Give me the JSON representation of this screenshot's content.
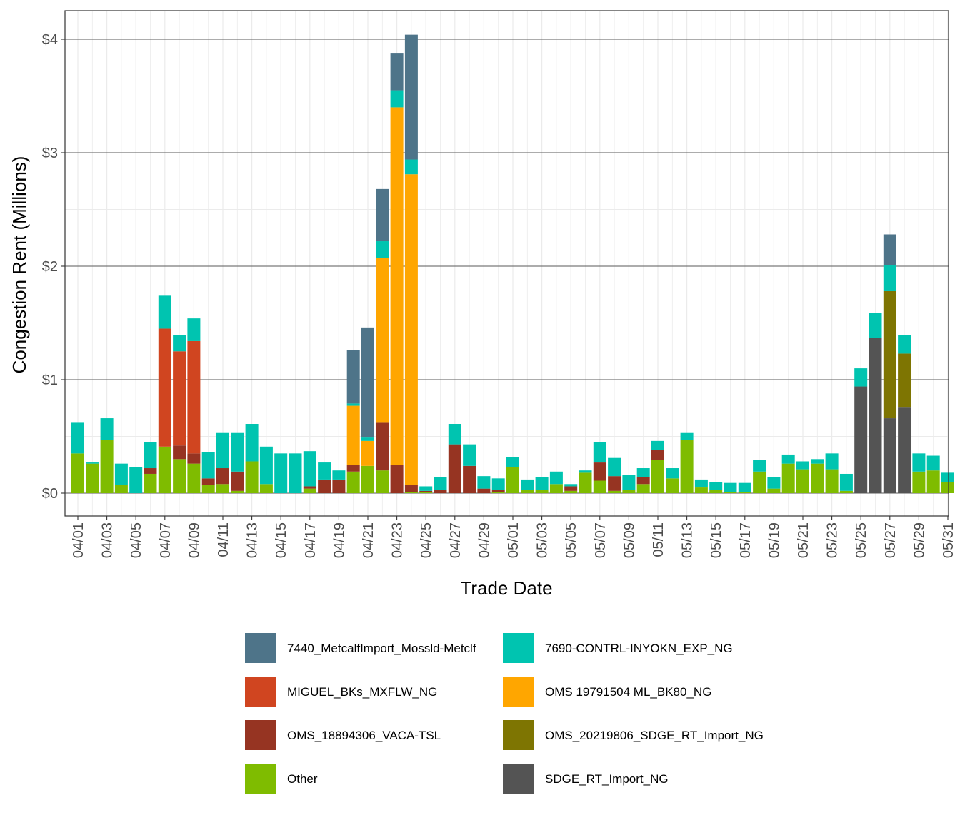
{
  "chart_data": {
    "type": "bar",
    "stacked": true,
    "xlabel": "Trade Date",
    "ylabel": "Congestion Rent (Millions)",
    "ylim": [
      -0.2,
      4.23
    ],
    "yticks": [
      {
        "value": 0,
        "label": "$0"
      },
      {
        "value": 1,
        "label": "$1"
      },
      {
        "value": 2,
        "label": "$2"
      },
      {
        "value": 3,
        "label": "$3"
      },
      {
        "value": 4,
        "label": "$4"
      }
    ],
    "grid": true,
    "legend_position": "bottom",
    "categories": [
      "04/01",
      "04/02",
      "04/03",
      "04/04",
      "04/05",
      "04/06",
      "04/07",
      "04/08",
      "04/09",
      "04/10",
      "04/11",
      "04/12",
      "04/13",
      "04/14",
      "04/15",
      "04/16",
      "04/17",
      "04/18",
      "04/19",
      "04/20",
      "04/21",
      "04/22",
      "04/23",
      "04/24",
      "04/25",
      "04/26",
      "04/27",
      "04/28",
      "04/29",
      "04/30",
      "05/01",
      "05/02",
      "05/03",
      "05/04",
      "05/05",
      "05/06",
      "05/07",
      "05/08",
      "05/09",
      "05/10",
      "05/11",
      "05/12",
      "05/13",
      "05/14",
      "05/15",
      "05/16",
      "05/17",
      "05/18",
      "05/19",
      "05/20",
      "05/21",
      "05/22",
      "05/23",
      "05/24",
      "05/25",
      "05/26",
      "05/27",
      "05/28",
      "05/29",
      "05/30",
      "05/31"
    ],
    "xtick_labels": [
      "04/01",
      "04/03",
      "04/05",
      "04/07",
      "04/09",
      "04/11",
      "04/13",
      "04/15",
      "04/17",
      "04/19",
      "04/21",
      "04/23",
      "04/25",
      "04/27",
      "04/29",
      "05/01",
      "05/03",
      "05/05",
      "05/07",
      "05/09",
      "05/11",
      "05/13",
      "05/15",
      "05/17",
      "05/19",
      "05/21",
      "05/23",
      "05/25",
      "05/27",
      "05/29",
      "05/31"
    ],
    "series": [
      {
        "name": "Other",
        "color": "#7fbc00",
        "values": [
          0.35,
          0.26,
          0.47,
          0.07,
          0.0,
          0.17,
          0.41,
          0.3,
          0.26,
          0.07,
          0.08,
          0.02,
          0.28,
          0.08,
          0.0,
          0.0,
          0.04,
          0.0,
          0.0,
          0.19,
          0.24,
          0.2,
          0.0,
          0.01,
          0.01,
          0.0,
          0.0,
          0.0,
          0.0,
          0.01,
          0.23,
          0.03,
          0.03,
          0.08,
          0.02,
          0.18,
          0.11,
          0.02,
          0.03,
          0.08,
          0.29,
          0.13,
          0.47,
          0.05,
          0.03,
          0.01,
          0.01,
          0.19,
          0.04,
          0.26,
          0.21,
          0.26,
          0.21,
          0.02,
          0.0,
          0.0,
          0.0,
          0.0,
          0.19,
          0.2,
          0.1
        ]
      },
      {
        "name": "SDGE_RT_Import_NG",
        "color": "#545454",
        "values": [
          0,
          0,
          0,
          0,
          0,
          0,
          0,
          0,
          0,
          0,
          0,
          0,
          0,
          0,
          0,
          0,
          0,
          0,
          0,
          0,
          0,
          0,
          0,
          0,
          0,
          0,
          0,
          0,
          0,
          0,
          0,
          0,
          0,
          0,
          0,
          0,
          0,
          0,
          0,
          0,
          0,
          0,
          0,
          0,
          0,
          0,
          0,
          0,
          0,
          0,
          0,
          0,
          0,
          0,
          0.94,
          1.37,
          0.66,
          0.76,
          0,
          0,
          0
        ]
      },
      {
        "name": "OMS_18894306_VACA-TSL",
        "color": "#963422",
        "values": [
          0,
          0,
          0,
          0,
          0,
          0.05,
          0,
          0.12,
          0.09,
          0.06,
          0.14,
          0.17,
          0,
          0,
          0,
          0,
          0.02,
          0.12,
          0.12,
          0.06,
          0,
          0.42,
          0.25,
          0.06,
          0.01,
          0.03,
          0.43,
          0.24,
          0.04,
          0.02,
          0,
          0,
          0,
          0,
          0.04,
          0,
          0.16,
          0.13,
          0,
          0.06,
          0.09,
          0,
          0,
          0,
          0,
          0,
          0,
          0,
          0,
          0,
          0,
          0,
          0,
          0,
          0,
          0,
          0,
          0,
          0,
          0,
          0
        ]
      },
      {
        "name": "MIGUEL_BKs_MXFLW_NG",
        "color": "#d04520",
        "values": [
          0,
          0,
          0,
          0,
          0,
          0,
          1.04,
          0.83,
          0.99,
          0,
          0,
          0,
          0,
          0,
          0,
          0,
          0,
          0,
          0,
          0,
          0,
          0,
          0,
          0,
          0,
          0,
          0,
          0,
          0,
          0,
          0,
          0,
          0,
          0,
          0,
          0,
          0,
          0,
          0,
          0,
          0,
          0,
          0,
          0,
          0,
          0,
          0,
          0,
          0,
          0,
          0,
          0,
          0,
          0,
          0,
          0,
          0,
          0,
          0,
          0,
          0
        ]
      },
      {
        "name": "OMS_20219806_SDGE_RT_Import_NG",
        "color": "#7e7502",
        "values": [
          0,
          0,
          0,
          0,
          0,
          0,
          0,
          0,
          0,
          0,
          0,
          0,
          0,
          0,
          0,
          0,
          0,
          0,
          0,
          0,
          0,
          0,
          0,
          0,
          0,
          0,
          0,
          0,
          0,
          0,
          0,
          0,
          0,
          0,
          0,
          0,
          0,
          0,
          0,
          0,
          0,
          0,
          0,
          0,
          0,
          0,
          0,
          0,
          0,
          0,
          0,
          0,
          0,
          0,
          0,
          0,
          1.12,
          0.47,
          0,
          0,
          0
        ]
      },
      {
        "name": "OMS 19791504 ML_BK80_NG",
        "color": "#ffa600",
        "values": [
          0,
          0,
          0,
          0,
          0,
          0,
          0,
          0,
          0,
          0,
          0,
          0,
          0,
          0,
          0,
          0,
          0,
          0,
          0,
          0.52,
          0.22,
          1.45,
          3.15,
          2.74,
          0,
          0,
          0,
          0,
          0,
          0,
          0,
          0,
          0,
          0,
          0,
          0,
          0,
          0,
          0,
          0,
          0,
          0,
          0,
          0,
          0,
          0,
          0,
          0,
          0,
          0,
          0,
          0,
          0,
          0,
          0,
          0,
          0,
          0,
          0,
          0,
          0
        ]
      },
      {
        "name": "7690-CONTRL-INYOKN_EXP_NG",
        "color": "#00c4b0",
        "values": [
          0.27,
          0.01,
          0.19,
          0.19,
          0.23,
          0.23,
          0.29,
          0.14,
          0.2,
          0.23,
          0.31,
          0.34,
          0.33,
          0.33,
          0.35,
          0.35,
          0.31,
          0.15,
          0.08,
          0.02,
          0.03,
          0.15,
          0.15,
          0.13,
          0.04,
          0.11,
          0.18,
          0.19,
          0.11,
          0.1,
          0.09,
          0.09,
          0.11,
          0.11,
          0.02,
          0.02,
          0.18,
          0.16,
          0.13,
          0.08,
          0.08,
          0.09,
          0.06,
          0.07,
          0.07,
          0.08,
          0.08,
          0.1,
          0.1,
          0.08,
          0.07,
          0.04,
          0.14,
          0.15,
          0.16,
          0.22,
          0.23,
          0.16,
          0.16,
          0.13,
          0.08
        ]
      },
      {
        "name": "7440_MetcalfImport_Mossld-Metclf",
        "color": "#4e7489",
        "values": [
          0,
          0,
          0,
          0,
          0,
          0,
          0,
          0,
          0,
          0,
          0,
          0,
          0,
          0,
          0,
          0,
          0,
          0,
          0,
          0.47,
          0.97,
          0.46,
          0.33,
          1.1,
          0,
          0,
          0,
          0,
          0,
          0,
          0,
          0,
          0,
          0,
          0,
          0,
          0,
          0,
          0,
          0,
          0,
          0,
          0,
          0,
          0,
          0,
          0,
          0,
          0,
          0,
          0,
          0,
          0,
          0,
          0,
          0,
          0.27,
          0,
          0,
          0,
          0
        ]
      }
    ],
    "legend_order": [
      "7440_MetcalfImport_Mossld-Metclf",
      "7690-CONTRL-INYOKN_EXP_NG",
      "MIGUEL_BKs_MXFLW_NG",
      "OMS 19791504 ML_BK80_NG",
      "OMS_18894306_VACA-TSL",
      "OMS_20219806_SDGE_RT_Import_NG",
      "Other",
      "SDGE_RT_Import_NG"
    ]
  }
}
